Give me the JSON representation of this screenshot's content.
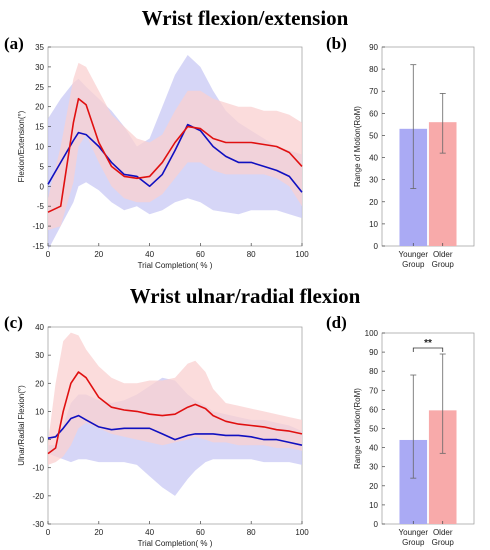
{
  "titles": {
    "top": "Wrist flexion/extension",
    "bottom": "Wrist ulnar/radial flexion"
  },
  "panel_labels": {
    "a": "(a)",
    "b": "(b)",
    "c": "(c)",
    "d": "(d)"
  },
  "colors": {
    "younger_line": "#1010c0",
    "older_line": "#e01010",
    "younger_band": "#c8c8f4",
    "older_band": "#fad0d0",
    "younger_bar": "#aaaaf4",
    "older_bar": "#f8aaaa"
  },
  "chart_data": [
    {
      "id": "a",
      "type": "line",
      "xlabel": "Trial Completion( % )",
      "ylabel": "Flexion/Extension(°)",
      "xlim": [
        0,
        100
      ],
      "ylim": [
        -15,
        35
      ],
      "xticks": [
        0,
        20,
        40,
        60,
        80,
        100
      ],
      "yticks": [
        -15,
        -10,
        -5,
        0,
        5,
        10,
        15,
        20,
        25,
        30,
        35
      ],
      "x": [
        0,
        5,
        10,
        12,
        15,
        20,
        25,
        30,
        35,
        40,
        45,
        50,
        55,
        60,
        65,
        70,
        75,
        80,
        85,
        90,
        95,
        100
      ],
      "series": [
        {
          "key": "younger",
          "values": [
            0.5,
            6,
            11.5,
            13.5,
            13,
            10,
            6,
            3,
            2.5,
            0,
            3,
            9,
            15.5,
            14,
            10,
            7.5,
            6,
            6,
            5,
            4,
            2.5,
            -1.5
          ],
          "band": {
            "upper": [
              17,
              22,
              26,
              27,
              25,
              22,
              19,
              15,
              10,
              12,
              20,
              28,
              33,
              30,
              24,
              19,
              16,
              14,
              12,
              10,
              9,
              8
            ],
            "lower": [
              -16,
              -10,
              -4,
              0,
              1,
              -1,
              -4,
              -6,
              -5,
              -7,
              -6,
              -4,
              -3,
              -4,
              -6,
              -6.5,
              -7,
              -6,
              -6,
              -6,
              -7,
              -8
            ]
          }
        },
        {
          "key": "older",
          "values": [
            -6.5,
            -5,
            16,
            22,
            20.5,
            11,
            5,
            2.5,
            2,
            2.5,
            6,
            11,
            15,
            14.5,
            12,
            11,
            11,
            11,
            10.5,
            10,
            8.5,
            5
          ],
          "band": {
            "upper": [
              -3,
              10,
              27,
              31,
              30,
              24,
              18,
              15,
              12,
              11,
              13,
              19,
              24,
              24,
              22,
              21,
              20,
              20,
              19,
              19,
              18,
              16
            ],
            "lower": [
              -11,
              -10,
              1,
              10,
              13,
              6,
              0,
              -3,
              -4,
              -4,
              -2,
              2,
              6,
              6,
              4,
              3,
              3,
              3,
              3,
              2,
              0,
              -5
            ]
          }
        }
      ]
    },
    {
      "id": "b",
      "type": "bar",
      "ylabel": "Range of Motion(RoM)",
      "ylim": [
        0,
        90
      ],
      "yticks": [
        0,
        10,
        20,
        30,
        40,
        50,
        60,
        70,
        80,
        90
      ],
      "categories": [
        "Younger Group",
        "Older Group"
      ],
      "category_lines": [
        [
          "Younger",
          "Group"
        ],
        [
          "Older",
          "Group"
        ]
      ],
      "values": [
        53,
        56
      ],
      "errors": [
        [
          26,
          82
        ],
        [
          42,
          69
        ]
      ]
    },
    {
      "id": "c",
      "type": "line",
      "xlabel": "Trial Completion( % )",
      "ylabel": "Ulnar/Radial Flexion(°)",
      "xlim": [
        0,
        100
      ],
      "ylim": [
        -30,
        40
      ],
      "xticks": [
        0,
        20,
        40,
        60,
        80,
        100
      ],
      "yticks": [
        -30,
        -20,
        -10,
        0,
        10,
        20,
        30,
        40
      ],
      "x": [
        0,
        3,
        6,
        9,
        12,
        15,
        20,
        25,
        30,
        35,
        40,
        45,
        50,
        55,
        58,
        62,
        65,
        70,
        75,
        80,
        85,
        90,
        95,
        100
      ],
      "series": [
        {
          "key": "younger",
          "values": [
            0.5,
            1,
            4,
            7.5,
            8.5,
            7,
            4.5,
            3.5,
            4,
            4,
            4,
            2,
            0,
            1.5,
            2,
            2,
            2,
            1.5,
            1.5,
            1,
            0,
            0,
            -1,
            -2
          ],
          "band": {
            "upper": [
              -2,
              -2,
              5,
              13,
              16,
              16,
              14,
              13,
              14,
              16,
              19,
              22,
              21,
              16,
              14,
              12,
              10,
              9,
              8,
              7,
              7,
              6,
              5,
              3
            ],
            "lower": [
              -5,
              -6,
              -7,
              -8,
              -7,
              -7,
              -8,
              -8,
              -8,
              -9,
              -13,
              -17,
              -20,
              -14,
              -11,
              -8,
              -7,
              -7,
              -7,
              -7,
              -8,
              -8,
              -8,
              -9
            ]
          }
        },
        {
          "key": "older",
          "values": [
            -5,
            -3,
            10,
            20,
            24,
            22,
            15,
            11.5,
            10.5,
            10,
            9,
            8.5,
            9,
            11.5,
            12.5,
            11,
            8.5,
            6.5,
            5.5,
            5,
            4.5,
            3.5,
            3,
            2
          ],
          "band": {
            "upper": [
              -1,
              20,
              35,
              38,
              37,
              32,
              26,
              22,
              20,
              20,
              21,
              21,
              22,
              27,
              28,
              24,
              18,
              13,
              12,
              11,
              10,
              9,
              8,
              7
            ],
            "lower": [
              -9,
              -8,
              -6,
              -2,
              4,
              6,
              4,
              2,
              1,
              0,
              -1,
              -2,
              -1,
              0,
              1,
              0,
              -1,
              -1,
              -2,
              -2,
              -2,
              -3,
              -3,
              -4
            ]
          }
        }
      ]
    },
    {
      "id": "d",
      "type": "bar",
      "ylabel": "Range of Motion(RoM)",
      "ylim": [
        0,
        100
      ],
      "yticks": [
        0,
        10,
        20,
        30,
        40,
        50,
        60,
        70,
        80,
        90,
        100
      ],
      "categories": [
        "Younger Group",
        "Older Group"
      ],
      "category_lines": [
        [
          "Younger",
          "Group"
        ],
        [
          "Older",
          "Group"
        ]
      ],
      "values": [
        44,
        59.5
      ],
      "errors": [
        [
          24,
          78
        ],
        [
          37,
          89
        ]
      ],
      "significance": "**"
    }
  ]
}
